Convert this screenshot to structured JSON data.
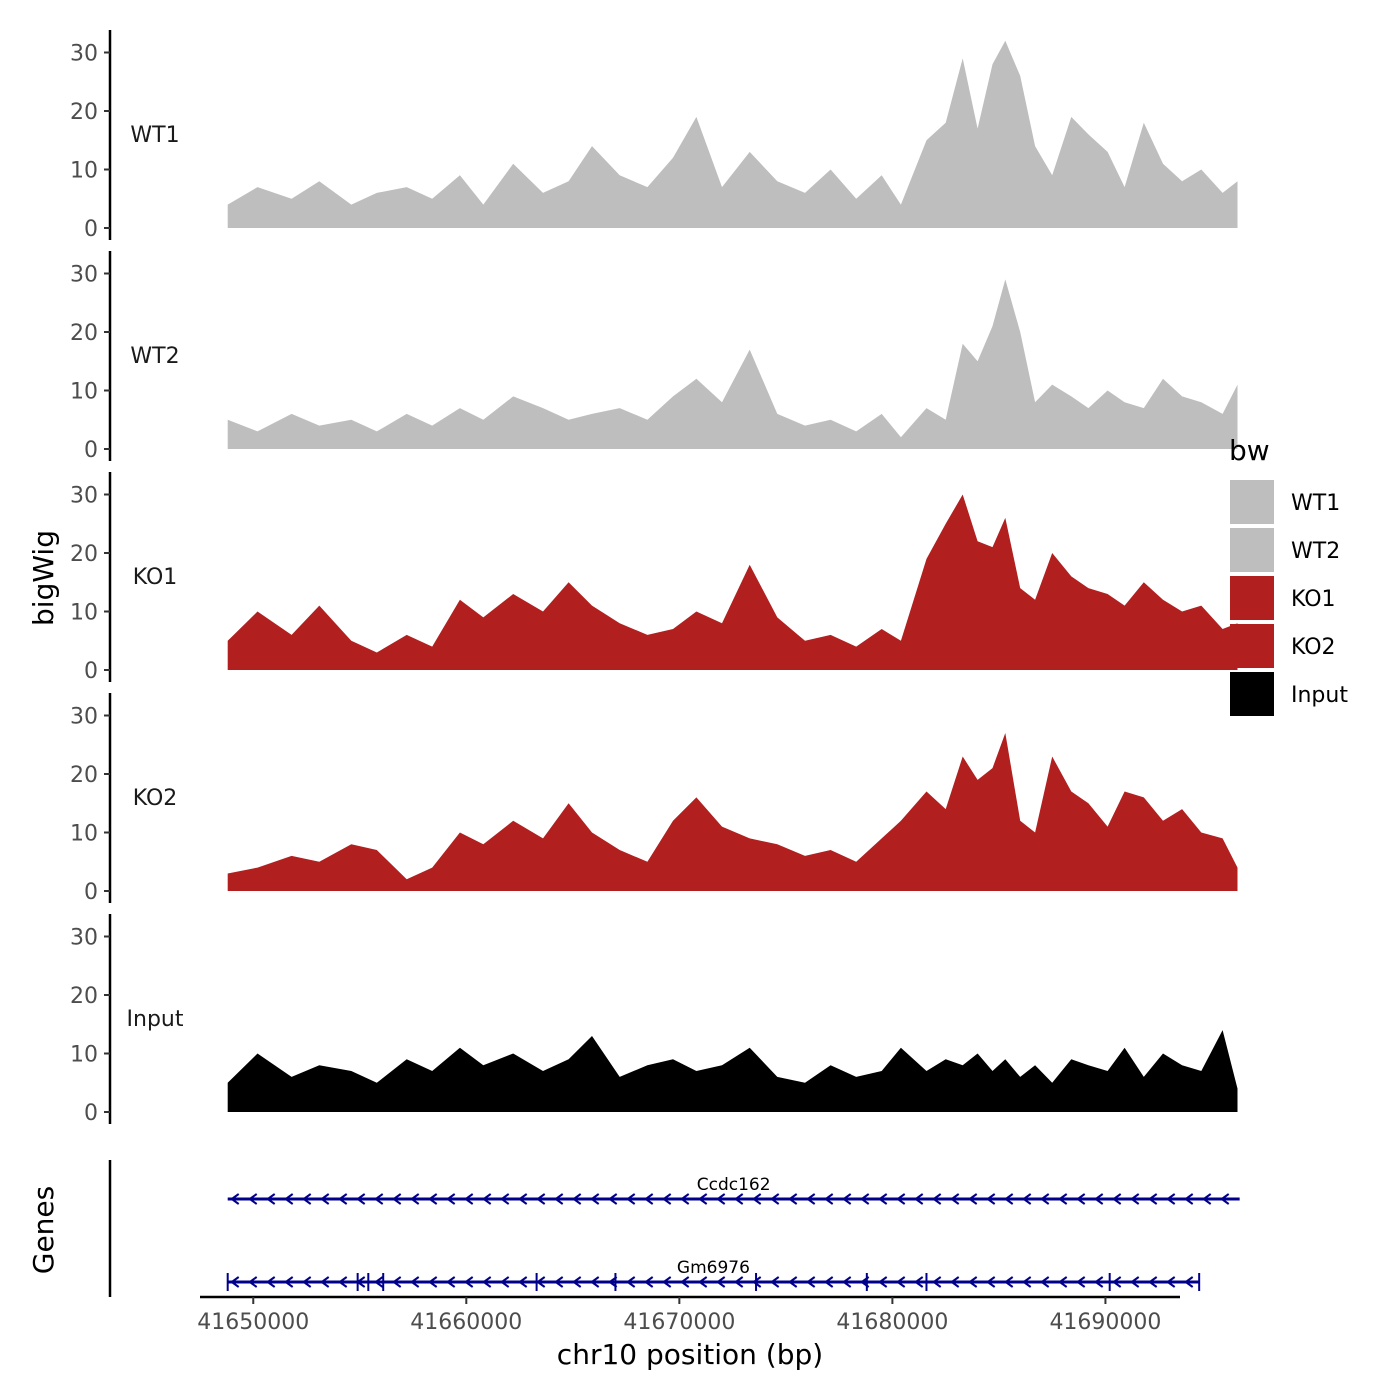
{
  "chart_data": {
    "type": "area",
    "chromosome": "chr10",
    "xlabel": "chr10 position (bp)",
    "ylabel": "bigWig",
    "genes_label": "Genes",
    "xlim": [
      41647500,
      41693500
    ],
    "xticks": [
      41650000,
      41660000,
      41670000,
      41680000,
      41690000
    ],
    "xtick_labels": [
      "41650000",
      "41660000",
      "41670000",
      "41680000",
      "41690000"
    ],
    "ylim": [
      0,
      32
    ],
    "yticks": [
      0,
      10,
      20,
      30
    ],
    "ytick_labels": [
      "0",
      "10",
      "20",
      "30"
    ],
    "legend": {
      "title": "bw",
      "position": "right",
      "entries": [
        {
          "label": "WT1",
          "color": "#bebebe"
        },
        {
          "label": "WT2",
          "color": "#bebebe"
        },
        {
          "label": "KO1",
          "color": "#b21f1f"
        },
        {
          "label": "KO2",
          "color": "#b21f1f"
        },
        {
          "label": "Input",
          "color": "#000000"
        }
      ]
    },
    "series": [
      {
        "name": "WT1",
        "color": "#bebebe",
        "x": [
          41648800,
          41650200,
          41651800,
          41653100,
          41654600,
          41655800,
          41657200,
          41658400,
          41659700,
          41660800,
          41662200,
          41663600,
          41664800,
          41665900,
          41667200,
          41668500,
          41669700,
          41670800,
          41672000,
          41673300,
          41674600,
          41675900,
          41677100,
          41678300,
          41679500,
          41680400,
          41681600,
          41682500,
          41683300,
          41684000,
          41684700,
          41685300,
          41686000,
          41686700,
          41687500,
          41688400,
          41689200,
          41690100,
          41690900,
          41691800,
          41692700,
          41693600,
          41694500,
          41695500,
          41696200
        ],
        "values": [
          4,
          7,
          5,
          8,
          4,
          6,
          7,
          5,
          9,
          4,
          11,
          6,
          8,
          14,
          9,
          7,
          12,
          19,
          7,
          13,
          8,
          6,
          10,
          5,
          9,
          4,
          15,
          18,
          29,
          17,
          28,
          32,
          26,
          14,
          9,
          19,
          16,
          13,
          7,
          18,
          11,
          8,
          10,
          6,
          8
        ]
      },
      {
        "name": "WT2",
        "color": "#bebebe",
        "x": [
          41648800,
          41650200,
          41651800,
          41653100,
          41654600,
          41655800,
          41657200,
          41658400,
          41659700,
          41660800,
          41662200,
          41663600,
          41664800,
          41665900,
          41667200,
          41668500,
          41669700,
          41670800,
          41672000,
          41673300,
          41674600,
          41675900,
          41677100,
          41678300,
          41679500,
          41680400,
          41681600,
          41682500,
          41683300,
          41684000,
          41684700,
          41685300,
          41686000,
          41686700,
          41687500,
          41688400,
          41689200,
          41690100,
          41690900,
          41691800,
          41692700,
          41693600,
          41694500,
          41695500,
          41696200
        ],
        "values": [
          5,
          3,
          6,
          4,
          5,
          3,
          6,
          4,
          7,
          5,
          9,
          7,
          5,
          6,
          7,
          5,
          9,
          12,
          8,
          17,
          6,
          4,
          5,
          3,
          6,
          2,
          7,
          5,
          18,
          15,
          21,
          29,
          20,
          8,
          11,
          9,
          7,
          10,
          8,
          7,
          12,
          9,
          8,
          6,
          11
        ]
      },
      {
        "name": "KO1",
        "color": "#b21f1f",
        "x": [
          41648800,
          41650200,
          41651800,
          41653100,
          41654600,
          41655800,
          41657200,
          41658400,
          41659700,
          41660800,
          41662200,
          41663600,
          41664800,
          41665900,
          41667200,
          41668500,
          41669700,
          41670800,
          41672000,
          41673300,
          41674600,
          41675900,
          41677100,
          41678300,
          41679500,
          41680400,
          41681600,
          41682500,
          41683300,
          41684000,
          41684700,
          41685300,
          41686000,
          41686700,
          41687500,
          41688400,
          41689200,
          41690100,
          41690900,
          41691800,
          41692700,
          41693600,
          41694500,
          41695500,
          41696200
        ],
        "values": [
          5,
          10,
          6,
          11,
          5,
          3,
          6,
          4,
          12,
          9,
          13,
          10,
          15,
          11,
          8,
          6,
          7,
          10,
          8,
          18,
          9,
          5,
          6,
          4,
          7,
          5,
          19,
          25,
          30,
          22,
          21,
          26,
          14,
          12,
          20,
          16,
          14,
          13,
          11,
          15,
          12,
          10,
          11,
          7,
          8
        ]
      },
      {
        "name": "KO2",
        "color": "#b21f1f",
        "x": [
          41648800,
          41650200,
          41651800,
          41653100,
          41654600,
          41655800,
          41657200,
          41658400,
          41659700,
          41660800,
          41662200,
          41663600,
          41664800,
          41665900,
          41667200,
          41668500,
          41669700,
          41670800,
          41672000,
          41673300,
          41674600,
          41675900,
          41677100,
          41678300,
          41679500,
          41680400,
          41681600,
          41682500,
          41683300,
          41684000,
          41684700,
          41685300,
          41686000,
          41686700,
          41687500,
          41688400,
          41689200,
          41690100,
          41690900,
          41691800,
          41692700,
          41693600,
          41694500,
          41695500,
          41696200
        ],
        "values": [
          3,
          4,
          6,
          5,
          8,
          7,
          2,
          4,
          10,
          8,
          12,
          9,
          15,
          10,
          7,
          5,
          12,
          16,
          11,
          9,
          8,
          6,
          7,
          5,
          9,
          12,
          17,
          14,
          23,
          19,
          21,
          27,
          12,
          10,
          23,
          17,
          15,
          11,
          17,
          16,
          12,
          14,
          10,
          9,
          4
        ]
      },
      {
        "name": "Input",
        "color": "#000000",
        "x": [
          41648800,
          41650200,
          41651800,
          41653100,
          41654600,
          41655800,
          41657200,
          41658400,
          41659700,
          41660800,
          41662200,
          41663600,
          41664800,
          41665900,
          41667200,
          41668500,
          41669700,
          41670800,
          41672000,
          41673300,
          41674600,
          41675900,
          41677100,
          41678300,
          41679500,
          41680400,
          41681600,
          41682500,
          41683300,
          41684000,
          41684700,
          41685300,
          41686000,
          41686700,
          41687500,
          41688400,
          41689200,
          41690100,
          41690900,
          41691800,
          41692700,
          41693600,
          41694500,
          41695500,
          41696200
        ],
        "values": [
          5,
          10,
          6,
          8,
          7,
          5,
          9,
          7,
          11,
          8,
          10,
          7,
          9,
          13,
          6,
          8,
          9,
          7,
          8,
          11,
          6,
          5,
          8,
          6,
          7,
          11,
          7,
          9,
          8,
          10,
          7,
          9,
          6,
          8,
          5,
          9,
          8,
          7,
          11,
          6,
          10,
          8,
          7,
          14,
          4
        ]
      }
    ],
    "genes": [
      {
        "name": "Ccdc162",
        "start": 41648800,
        "end": 41696300,
        "strand": "-",
        "color": "#00008b",
        "exons": []
      },
      {
        "name": "Gm6976",
        "start": 41648800,
        "end": 41694400,
        "strand": "-",
        "color": "#00008b",
        "exons": [
          41648800,
          41654900,
          41655400,
          41656100,
          41663300,
          41667000,
          41673600,
          41678800,
          41681600,
          41690200,
          41694400
        ]
      }
    ]
  }
}
